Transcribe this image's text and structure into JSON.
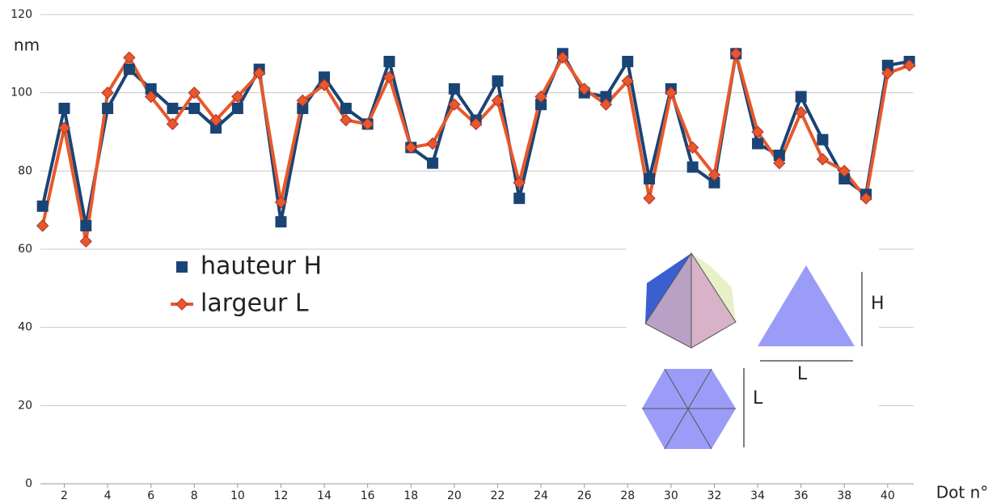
{
  "chart_data": {
    "type": "line",
    "y_label": "nm",
    "x_label": "Dot n°",
    "x": [
      1,
      2,
      3,
      4,
      5,
      6,
      7,
      8,
      9,
      10,
      11,
      12,
      13,
      14,
      15,
      16,
      17,
      18,
      19,
      20,
      21,
      22,
      23,
      24,
      25,
      26,
      27,
      28,
      29,
      30,
      31,
      32,
      33,
      34,
      35,
      36,
      37,
      38,
      39,
      40,
      41
    ],
    "series": [
      {
        "name": "hauteur H",
        "color": "#1a4474",
        "marker": "square",
        "values": [
          71,
          96,
          66,
          96,
          106,
          101,
          96,
          96,
          91,
          96,
          106,
          67,
          96,
          104,
          96,
          92,
          108,
          86,
          82,
          101,
          93,
          103,
          73,
          97,
          110,
          100,
          99,
          108,
          78,
          101,
          81,
          77,
          110,
          87,
          84,
          99,
          88,
          78,
          74,
          107,
          108
        ]
      },
      {
        "name": "largeur  L",
        "color": "#e8582a",
        "marker": "diamond",
        "values": [
          66,
          91,
          62,
          100,
          109,
          99,
          92,
          100,
          93,
          99,
          105,
          72,
          98,
          102,
          93,
          92,
          104,
          86,
          87,
          97,
          92,
          98,
          77,
          99,
          109,
          101,
          97,
          103,
          73,
          100,
          86,
          79,
          110,
          90,
          82,
          95,
          83,
          80,
          73,
          105,
          107
        ]
      }
    ],
    "xlim": [
      0.9,
      41.2
    ],
    "ylim": [
      0,
      120
    ],
    "xticks": [
      2,
      4,
      6,
      8,
      10,
      12,
      14,
      16,
      18,
      20,
      22,
      24,
      26,
      28,
      30,
      32,
      34,
      36,
      38,
      40
    ],
    "yticks": [
      0,
      20,
      40,
      60,
      80,
      100,
      120
    ],
    "grid": true
  },
  "inset": {
    "height_label": "H",
    "base_label": "L",
    "hexagon_label": "L"
  }
}
